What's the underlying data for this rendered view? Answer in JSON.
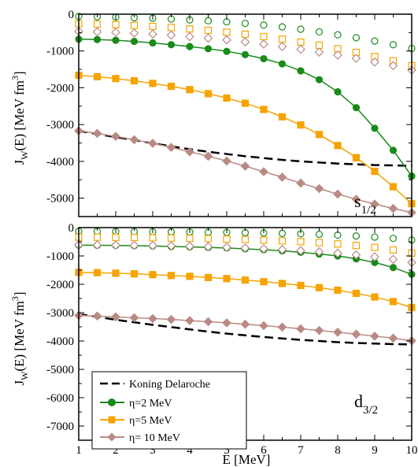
{
  "figure": {
    "ylabel_main": "J",
    "ylabel_sub": "W",
    "ylabel_rest": "(E) [MeV fm",
    "ylabel_sup": "3",
    "ylabel_close": "]",
    "xlabel": "E [MeV]"
  },
  "legend": {
    "entries": [
      {
        "label": "Koning Delaroche"
      },
      {
        "label": "η=2 MeV"
      },
      {
        "label": "η=5 MeV"
      },
      {
        "label": "η= 10 MeV"
      }
    ]
  },
  "colors": {
    "eta2": "#1a8a1a",
    "eta5": "#f5a300",
    "eta10": "#b98a84",
    "kd": "#000000"
  },
  "chart_data": [
    {
      "type": "line",
      "panel_label_main": "s",
      "panel_label_sub": "1/2",
      "xlim": [
        1,
        10
      ],
      "ylim": [
        -5500,
        0
      ],
      "x_ticks": [
        1,
        2,
        3,
        4,
        5,
        6,
        7,
        8,
        9,
        10
      ],
      "y_ticks": [
        0,
        -1000,
        -2000,
        -3000,
        -4000,
        -5000
      ],
      "x": [
        1,
        1.5,
        2,
        2.5,
        3,
        3.5,
        4,
        4.5,
        5,
        5.5,
        6,
        6.5,
        7,
        7.5,
        8,
        8.5,
        9,
        9.5,
        10
      ],
      "series": [
        {
          "name": "Koning Delaroche",
          "style": "dashed",
          "color_key": "kd",
          "values": [
            -3170,
            -3260,
            -3340,
            -3420,
            -3510,
            -3590,
            -3670,
            -3740,
            -3800,
            -3860,
            -3910,
            -3960,
            -4000,
            -4030,
            -4060,
            -4080,
            -4100,
            -4110,
            -4120
          ]
        },
        {
          "name": "η=2 MeV",
          "marker": "circle",
          "filled": true,
          "color_key": "eta2",
          "values": [
            -680,
            -690,
            -710,
            -740,
            -780,
            -830,
            -880,
            -940,
            -1010,
            -1100,
            -1210,
            -1350,
            -1540,
            -1780,
            -2110,
            -2540,
            -3100,
            -3700,
            -4400
          ]
        },
        {
          "name": "η=5 MeV",
          "marker": "square",
          "filled": true,
          "color_key": "eta5",
          "values": [
            -1660,
            -1700,
            -1750,
            -1810,
            -1880,
            -1960,
            -2050,
            -2160,
            -2280,
            -2420,
            -2590,
            -2790,
            -3010,
            -3270,
            -3570,
            -3900,
            -4270,
            -4690,
            -5150
          ]
        },
        {
          "name": "η= 10 MeV",
          "marker": "diamond",
          "filled": true,
          "color_key": "eta10",
          "values": [
            -3170,
            -3240,
            -3320,
            -3410,
            -3510,
            -3620,
            -3740,
            -3860,
            -3990,
            -4130,
            -4280,
            -4430,
            -4590,
            -4740,
            -4890,
            -5030,
            -5160,
            -5280,
            -5390
          ]
        },
        {
          "name": "",
          "marker": "circle",
          "filled": false,
          "color_key": "eta2",
          "values": [
            -60,
            -70,
            -80,
            -95,
            -110,
            -130,
            -155,
            -180,
            -210,
            -250,
            -295,
            -345,
            -410,
            -480,
            -560,
            -640,
            -730,
            -830,
            -930
          ]
        },
        {
          "name": "",
          "marker": "square",
          "filled": false,
          "color_key": "eta5",
          "values": [
            -260,
            -270,
            -285,
            -305,
            -330,
            -360,
            -400,
            -440,
            -490,
            -545,
            -610,
            -680,
            -760,
            -845,
            -940,
            -1040,
            -1150,
            -1270,
            -1400
          ]
        },
        {
          "name": "",
          "marker": "diamond",
          "filled": false,
          "color_key": "eta10",
          "values": [
            -470,
            -480,
            -495,
            -515,
            -540,
            -570,
            -610,
            -650,
            -700,
            -755,
            -815,
            -880,
            -955,
            -1030,
            -1110,
            -1200,
            -1300,
            -1400,
            -1520
          ]
        }
      ]
    },
    {
      "type": "line",
      "panel_label_main": "d",
      "panel_label_sub": "3/2",
      "xlim": [
        1,
        10
      ],
      "ylim": [
        -7500,
        0
      ],
      "x_ticks": [
        1,
        2,
        3,
        4,
        5,
        6,
        7,
        8,
        9,
        10
      ],
      "y_ticks": [
        0,
        -1000,
        -2000,
        -3000,
        -4000,
        -5000,
        -6000,
        -7000
      ],
      "x": [
        1,
        1.5,
        2,
        2.5,
        3,
        3.5,
        4,
        4.5,
        5,
        5.5,
        6,
        6.5,
        7,
        7.5,
        8,
        8.5,
        9,
        9.5,
        10
      ],
      "series": [
        {
          "name": "Koning Delaroche",
          "style": "dashed",
          "color_key": "kd",
          "values": [
            -3050,
            -3150,
            -3250,
            -3340,
            -3430,
            -3510,
            -3590,
            -3670,
            -3740,
            -3800,
            -3860,
            -3910,
            -3960,
            -4000,
            -4040,
            -4070,
            -4090,
            -4110,
            -4120
          ]
        },
        {
          "name": "η=2 MeV",
          "marker": "circle",
          "filled": true,
          "color_key": "eta2",
          "values": [
            -620,
            -625,
            -630,
            -640,
            -650,
            -665,
            -680,
            -700,
            -720,
            -750,
            -780,
            -820,
            -870,
            -930,
            -1000,
            -1100,
            -1230,
            -1410,
            -1650
          ]
        },
        {
          "name": "η=5 MeV",
          "marker": "square",
          "filled": true,
          "color_key": "eta5",
          "values": [
            -1580,
            -1590,
            -1610,
            -1630,
            -1660,
            -1690,
            -1720,
            -1760,
            -1800,
            -1850,
            -1910,
            -1970,
            -2040,
            -2120,
            -2210,
            -2320,
            -2450,
            -2610,
            -2820
          ]
        },
        {
          "name": "η= 10 MeV",
          "marker": "diamond",
          "filled": true,
          "color_key": "eta10",
          "values": [
            -3100,
            -3120,
            -3150,
            -3180,
            -3210,
            -3240,
            -3280,
            -3320,
            -3360,
            -3410,
            -3460,
            -3510,
            -3570,
            -3630,
            -3690,
            -3760,
            -3830,
            -3900,
            -3990
          ]
        },
        {
          "name": "",
          "marker": "circle",
          "filled": false,
          "color_key": "eta2",
          "values": [
            -130,
            -130,
            -135,
            -140,
            -145,
            -150,
            -155,
            -160,
            -170,
            -180,
            -190,
            -205,
            -220,
            -240,
            -265,
            -295,
            -335,
            -380,
            -440
          ]
        },
        {
          "name": "",
          "marker": "square",
          "filled": false,
          "color_key": "eta5",
          "values": [
            -340,
            -340,
            -345,
            -350,
            -360,
            -370,
            -380,
            -390,
            -405,
            -420,
            -440,
            -465,
            -495,
            -530,
            -575,
            -630,
            -700,
            -790,
            -900
          ]
        },
        {
          "name": "",
          "marker": "diamond",
          "filled": false,
          "color_key": "eta10",
          "values": [
            -610,
            -612,
            -618,
            -625,
            -635,
            -645,
            -660,
            -675,
            -695,
            -720,
            -745,
            -775,
            -810,
            -850,
            -900,
            -960,
            -1030,
            -1120,
            -1230
          ]
        }
      ]
    }
  ]
}
